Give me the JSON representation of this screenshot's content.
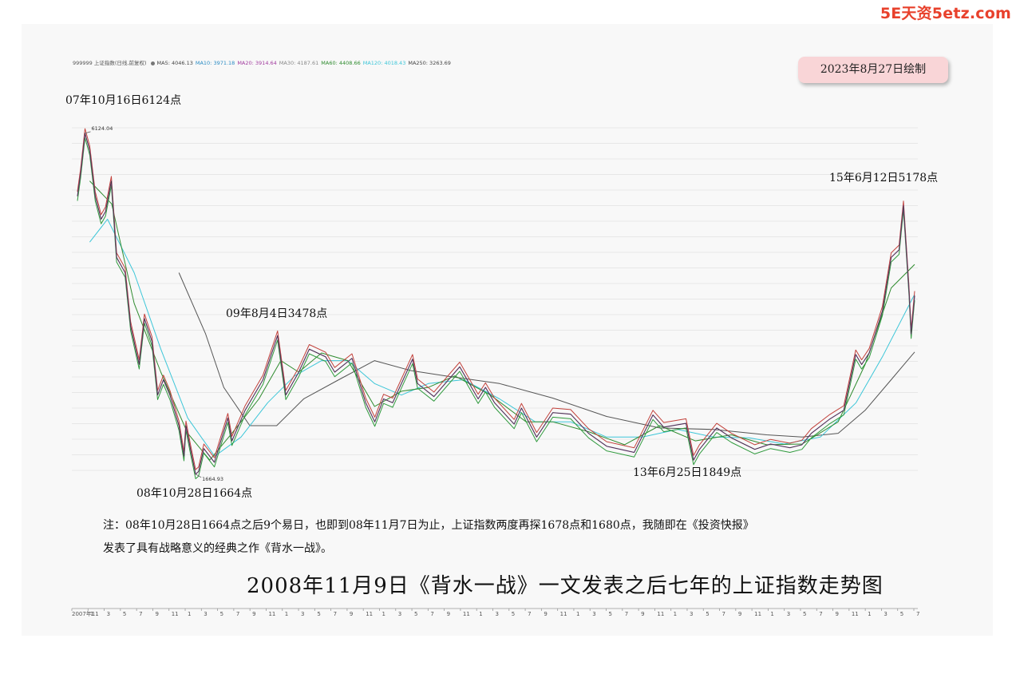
{
  "watermark": "5E天资5etz.com",
  "legend": {
    "items": [
      {
        "text": "999999 上证指数(日线,前复权)",
        "color": "#555555"
      },
      {
        "text": "MA5: 4046.13",
        "color": "#444444"
      },
      {
        "text": "MA10: 3971.18",
        "color": "#2b8cc4"
      },
      {
        "text": "MA20: 3914.64",
        "color": "#a23c9f"
      },
      {
        "text": "MA30: 4187.61",
        "color": "#888888"
      },
      {
        "text": "MA60: 4408.66",
        "color": "#2e8b2e"
      },
      {
        "text": "MA120: 4018.43",
        "color": "#3cc6d8"
      },
      {
        "text": "MA250: 3263.69",
        "color": "#444444"
      }
    ]
  },
  "date_badge": "2023年8月27日绘制",
  "annotations": {
    "peak_2007": "07年10月16日6124点",
    "low_2008": "08年10月28日1664点",
    "peak_2009": "09年8月4日3478点",
    "low_2013": "13年6月25日1849点",
    "peak_2015": "15年6月12日5178点",
    "max_label": "6124.04",
    "min_label": "1664.93"
  },
  "note": {
    "line1": "注：08年10月28日1664点之后9个易日，也即到08年11月7日为止，上证指数两度再探1678点和1680点，我随即在《投资快报》",
    "line2": "发表了具有战略意义的经典之作《背水一战》。"
  },
  "title": "2008年11月9日《背水一战》一文发表之后七年的上证指数走势图",
  "chart_data": {
    "type": "line",
    "title": "2008年11月9日《背水一战》一文发表之后七年的上证指数走势图",
    "series_name": "999999 上证指数(日线,前复权)",
    "x_tick_labels": [
      "2007年11",
      "1",
      "3",
      "5",
      "7",
      "9",
      "11",
      "1",
      "3",
      "5",
      "7",
      "9",
      "11",
      "1",
      "3",
      "5",
      "7",
      "9",
      "11",
      "1",
      "3",
      "5",
      "7",
      "9",
      "11",
      "1",
      "3",
      "5",
      "7",
      "9",
      "11",
      "1",
      "3",
      "5",
      "7",
      "9",
      "11",
      "1",
      "3",
      "5",
      "7",
      "9",
      "11",
      "1",
      "3",
      "5",
      "7",
      "9",
      "11",
      "1",
      "3",
      "5",
      "7"
    ],
    "x_range": [
      "2007-09",
      "2015-07"
    ],
    "ylim": [
      1600,
      6300
    ],
    "grid": true,
    "price": [
      [
        "2007-09-20",
        5300
      ],
      [
        "2007-10-01",
        5600
      ],
      [
        "2007-10-16",
        6124
      ],
      [
        "2007-11-01",
        5900
      ],
      [
        "2007-11-20",
        5300
      ],
      [
        "2007-12-10",
        5000
      ],
      [
        "2007-12-25",
        5100
      ],
      [
        "2008-01-14",
        5500
      ],
      [
        "2008-02-01",
        4500
      ],
      [
        "2008-03-01",
        4300
      ],
      [
        "2008-03-20",
        3600
      ],
      [
        "2008-04-18",
        3100
      ],
      [
        "2008-05-06",
        3700
      ],
      [
        "2008-06-01",
        3400
      ],
      [
        "2008-06-20",
        2700
      ],
      [
        "2008-07-10",
        2900
      ],
      [
        "2008-08-01",
        2700
      ],
      [
        "2008-09-01",
        2300
      ],
      [
        "2008-09-18",
        1900
      ],
      [
        "2008-09-25",
        2300
      ],
      [
        "2008-10-10",
        2000
      ],
      [
        "2008-10-28",
        1665
      ],
      [
        "2008-11-07",
        1700
      ],
      [
        "2008-11-25",
        2000
      ],
      [
        "2008-12-31",
        1820
      ],
      [
        "2009-02-15",
        2400
      ],
      [
        "2009-03-01",
        2100
      ],
      [
        "2009-04-15",
        2500
      ],
      [
        "2009-06-15",
        2900
      ],
      [
        "2009-08-04",
        3478
      ],
      [
        "2009-09-01",
        2700
      ],
      [
        "2009-10-15",
        3000
      ],
      [
        "2009-11-20",
        3300
      ],
      [
        "2010-01-15",
        3200
      ],
      [
        "2010-02-15",
        3000
      ],
      [
        "2010-04-15",
        3180
      ],
      [
        "2010-06-01",
        2600
      ],
      [
        "2010-07-02",
        2350
      ],
      [
        "2010-08-01",
        2650
      ],
      [
        "2010-09-01",
        2600
      ],
      [
        "2010-11-08",
        3170
      ],
      [
        "2010-11-25",
        2850
      ],
      [
        "2011-01-20",
        2680
      ],
      [
        "2011-04-18",
        3070
      ],
      [
        "2011-06-20",
        2650
      ],
      [
        "2011-07-15",
        2800
      ],
      [
        "2011-08-15",
        2600
      ],
      [
        "2011-10-21",
        2320
      ],
      [
        "2011-11-15",
        2530
      ],
      [
        "2012-01-06",
        2150
      ],
      [
        "2012-03-01",
        2470
      ],
      [
        "2012-05-01",
        2450
      ],
      [
        "2012-07-01",
        2200
      ],
      [
        "2012-09-01",
        2030
      ],
      [
        "2012-12-04",
        1950
      ],
      [
        "2013-02-06",
        2440
      ],
      [
        "2013-03-15",
        2280
      ],
      [
        "2013-05-30",
        2330
      ],
      [
        "2013-06-25",
        1849
      ],
      [
        "2013-07-15",
        1990
      ],
      [
        "2013-09-12",
        2270
      ],
      [
        "2013-11-01",
        2140
      ],
      [
        "2014-01-20",
        1990
      ],
      [
        "2014-03-15",
        2060
      ],
      [
        "2014-05-20",
        2010
      ],
      [
        "2014-06-30",
        2050
      ],
      [
        "2014-08-01",
        2200
      ],
      [
        "2014-10-01",
        2380
      ],
      [
        "2014-11-20",
        2500
      ],
      [
        "2014-12-31",
        3230
      ],
      [
        "2015-01-20",
        3100
      ],
      [
        "2015-02-15",
        3250
      ],
      [
        "2015-04-01",
        3800
      ],
      [
        "2015-05-01",
        4500
      ],
      [
        "2015-05-28",
        4600
      ],
      [
        "2015-06-12",
        5178
      ],
      [
        "2015-07-01",
        4050
      ],
      [
        "2015-07-08",
        3500
      ],
      [
        "2015-07-20",
        4000
      ]
    ],
    "ma250": [
      [
        "2008-09-01",
        4300
      ],
      [
        "2008-12-01",
        3500
      ],
      [
        "2009-02-01",
        2800
      ],
      [
        "2009-05-01",
        2300
      ],
      [
        "2009-08-01",
        2300
      ],
      [
        "2009-11-01",
        2650
      ],
      [
        "2010-03-01",
        2900
      ],
      [
        "2010-07-01",
        3150
      ],
      [
        "2010-11-01",
        3020
      ],
      [
        "2011-03-01",
        2950
      ],
      [
        "2011-09-01",
        2850
      ],
      [
        "2012-03-01",
        2660
      ],
      [
        "2012-09-01",
        2420
      ],
      [
        "2013-03-01",
        2270
      ],
      [
        "2013-09-01",
        2250
      ],
      [
        "2014-03-01",
        2180
      ],
      [
        "2014-07-01",
        2150
      ],
      [
        "2014-11-01",
        2200
      ],
      [
        "2015-02-01",
        2500
      ],
      [
        "2015-05-01",
        2900
      ],
      [
        "2015-07-20",
        3263
      ]
    ],
    "ma120": [
      [
        "2007-11-01",
        4700
      ],
      [
        "2008-01-01",
        5000
      ],
      [
        "2008-04-01",
        4300
      ],
      [
        "2008-07-01",
        3300
      ],
      [
        "2008-10-01",
        2400
      ],
      [
        "2009-01-01",
        1900
      ],
      [
        "2009-04-01",
        2150
      ],
      [
        "2009-07-01",
        2600
      ],
      [
        "2009-10-01",
        2950
      ],
      [
        "2010-01-01",
        3150
      ],
      [
        "2010-04-01",
        3150
      ],
      [
        "2010-07-01",
        2850
      ],
      [
        "2010-10-01",
        2700
      ],
      [
        "2011-01-01",
        2850
      ],
      [
        "2011-05-01",
        2900
      ],
      [
        "2011-09-01",
        2650
      ],
      [
        "2012-01-01",
        2350
      ],
      [
        "2012-05-01",
        2350
      ],
      [
        "2012-09-01",
        2150
      ],
      [
        "2013-01-01",
        2150
      ],
      [
        "2013-05-01",
        2250
      ],
      [
        "2013-09-01",
        2150
      ],
      [
        "2014-01-01",
        2140
      ],
      [
        "2014-05-01",
        2060
      ],
      [
        "2014-09-01",
        2150
      ],
      [
        "2015-01-01",
        2600
      ],
      [
        "2015-04-01",
        3200
      ],
      [
        "2015-07-20",
        4018
      ]
    ],
    "ma60": [
      [
        "2007-11-01",
        5500
      ],
      [
        "2008-01-15",
        5200
      ],
      [
        "2008-04-01",
        3900
      ],
      [
        "2008-07-01",
        3000
      ],
      [
        "2008-10-01",
        2200
      ],
      [
        "2008-12-15",
        1850
      ],
      [
        "2009-03-01",
        2200
      ],
      [
        "2009-06-01",
        2650
      ],
      [
        "2009-08-15",
        3150
      ],
      [
        "2009-10-15",
        3000
      ],
      [
        "2010-01-01",
        3250
      ],
      [
        "2010-04-01",
        3150
      ],
      [
        "2010-07-01",
        2550
      ],
      [
        "2010-10-01",
        2750
      ],
      [
        "2011-01-01",
        2800
      ],
      [
        "2011-04-01",
        2950
      ],
      [
        "2011-08-01",
        2700
      ],
      [
        "2011-12-01",
        2350
      ],
      [
        "2012-03-01",
        2350
      ],
      [
        "2012-07-01",
        2220
      ],
      [
        "2012-11-01",
        2050
      ],
      [
        "2013-03-01",
        2300
      ],
      [
        "2013-07-01",
        2100
      ],
      [
        "2013-11-01",
        2180
      ],
      [
        "2014-03-01",
        2050
      ],
      [
        "2014-07-01",
        2060
      ],
      [
        "2014-11-01",
        2350
      ],
      [
        "2015-02-01",
        3100
      ],
      [
        "2015-05-01",
        4100
      ],
      [
        "2015-07-20",
        4408
      ]
    ]
  }
}
